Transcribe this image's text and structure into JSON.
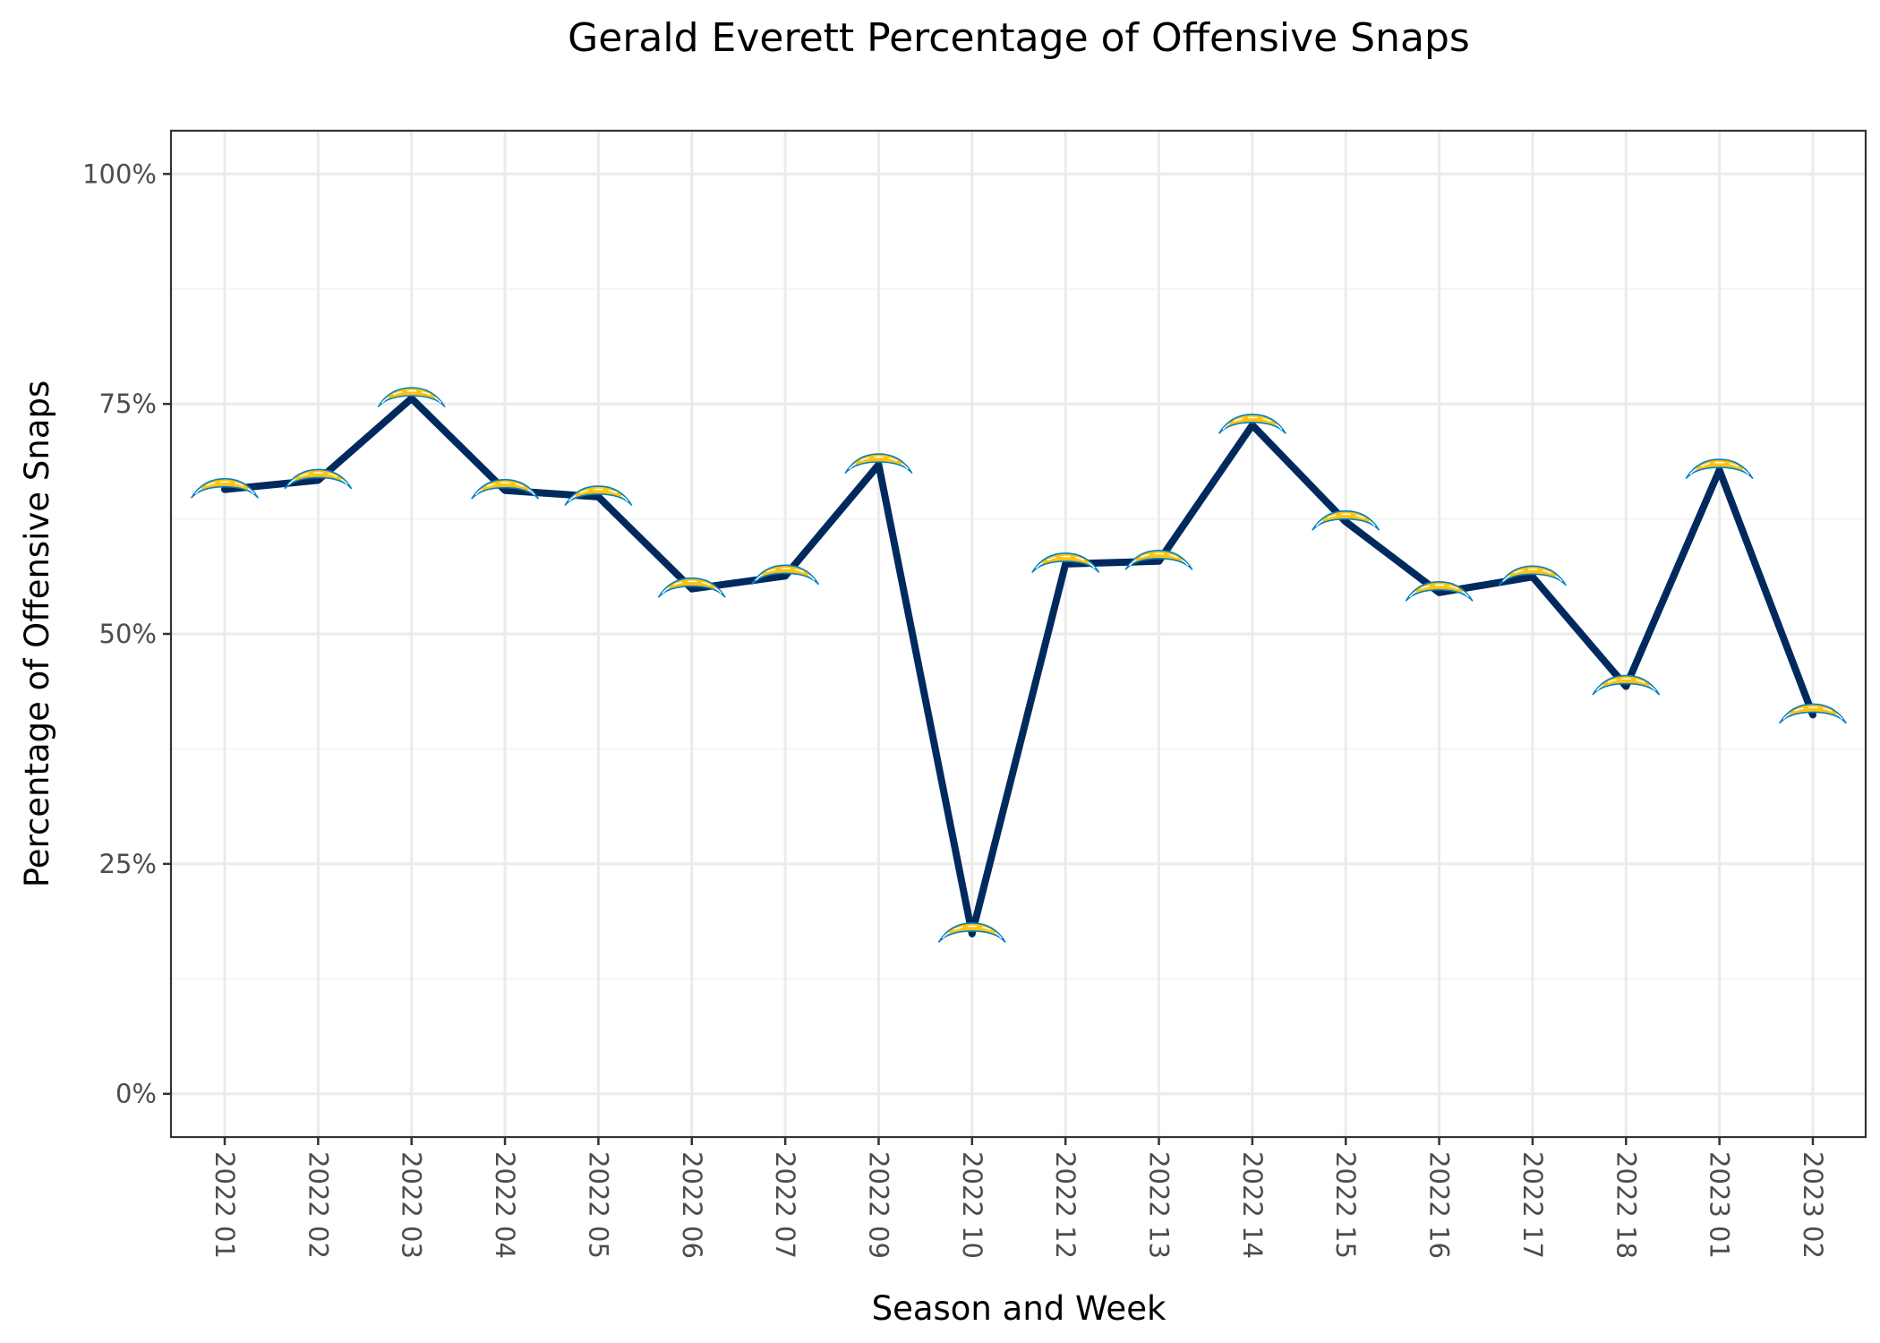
{
  "chart_data": {
    "type": "line",
    "title": "Gerald Everett Percentage of Offensive Snaps",
    "xlabel": "Season and Week",
    "ylabel": "Percentage of Offensive Snaps",
    "categories": [
      "2022 01",
      "2022 02",
      "2022 03",
      "2022 04",
      "2022 05",
      "2022 06",
      "2022 07",
      "2022 09",
      "2022 10",
      "2022 12",
      "2022 13",
      "2022 14",
      "2022 15",
      "2022 16",
      "2022 17",
      "2022 18",
      "2023 01",
      "2023 02"
    ],
    "values": [
      65.7,
      66.7,
      75.6,
      65.6,
      64.9,
      54.9,
      56.3,
      68.4,
      17.4,
      57.6,
      57.9,
      72.7,
      62.2,
      54.5,
      56.2,
      44.3,
      67.8,
      41.2
    ],
    "ylim": [
      -4.7,
      104.7
    ],
    "yticks": [
      0,
      25,
      50,
      75,
      100
    ],
    "ytick_labels": [
      "0%",
      "25%",
      "50%",
      "75%",
      "100%"
    ],
    "grid": true,
    "line_color": "#002a5e",
    "marker": "chargers-bolt-logo",
    "marker_colors": {
      "bolt": "#ffc20e",
      "outline": "#0080c6"
    }
  }
}
